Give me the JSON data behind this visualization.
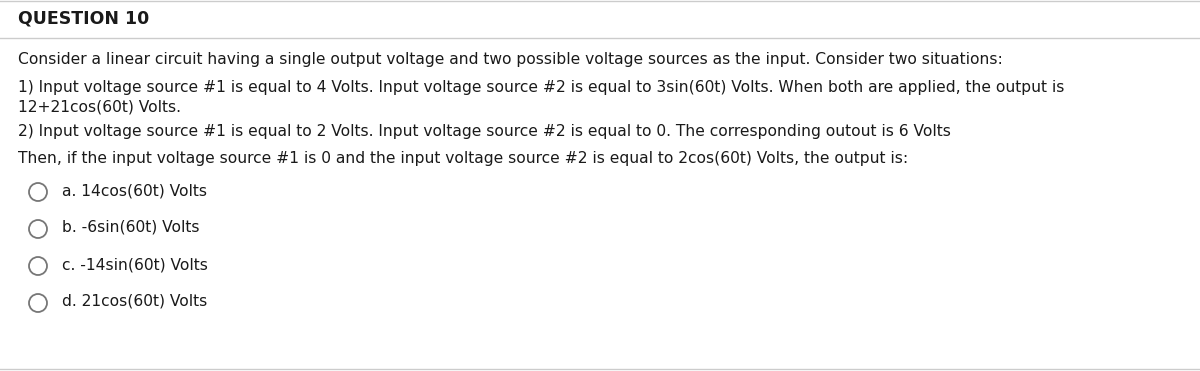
{
  "title": "QUESTION 10",
  "background_color": "#ffffff",
  "border_color": "#cccccc",
  "text_color": "#1a1a1a",
  "paragraph": "Consider a linear circuit having a single output voltage and two possible voltage sources as the input. Consider two situations:",
  "item1_line1": "1) Input voltage source #1 is equal to 4 Volts. Input voltage source #2 is equal to 3sin(60t) Volts. When both are applied, the output is",
  "item1_line2": "12+21cos(60t) Volts.",
  "item2": "2) Input voltage source #1 is equal to 2 Volts. Input voltage source #2 is equal to 0. The corresponding outout is 6 Volts",
  "question": "Then, if the input voltage source #1 is 0 and the input voltage source #2 is equal to 2cos(60t) Volts, the output is:",
  "choices": [
    "a. 14cos(60t) Volts",
    "b. -6sin(60t) Volts",
    "c. -14sin(60t) Volts",
    "d. 21cos(60t) Volts"
  ],
  "title_fontsize": 12.5,
  "body_fontsize": 11.2,
  "choice_fontsize": 11.2,
  "fig_width": 12.0,
  "fig_height": 3.71
}
